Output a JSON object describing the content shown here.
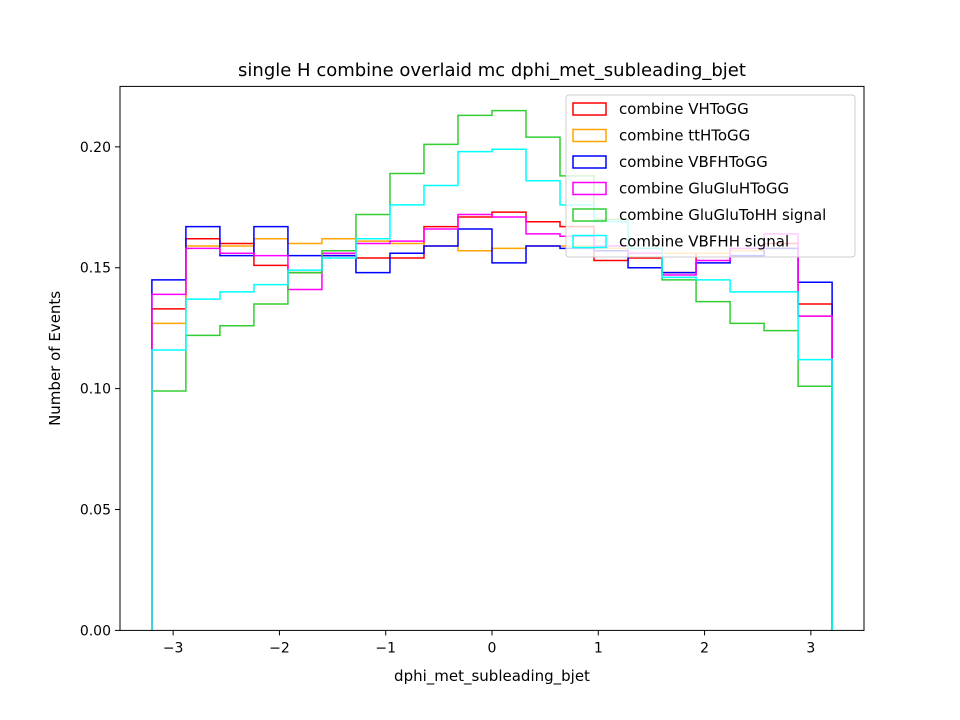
{
  "chart_data": {
    "type": "histogram-step",
    "title": "single H combine overlaid mc dphi_met_subleading_bjet",
    "xlabel": "dphi_met_subleading_bjet",
    "ylabel": "Number of Events",
    "xlim": [
      -3.5,
      3.5
    ],
    "ylim": [
      0,
      0.225
    ],
    "x_ticks": [
      -3,
      -2,
      -1,
      0,
      1,
      2,
      3
    ],
    "x_tick_labels": [
      "−3",
      "−2",
      "−1",
      "0",
      "1",
      "2",
      "3"
    ],
    "y_ticks": [
      0.0,
      0.05,
      0.1,
      0.15,
      0.2
    ],
    "y_tick_labels": [
      "0.00",
      "0.05",
      "0.10",
      "0.15",
      "0.20"
    ],
    "grid": false,
    "legend_position": "top-right",
    "bin_edges": [
      -3.2,
      -2.88,
      -2.56,
      -2.24,
      -1.92,
      -1.6,
      -1.28,
      -0.96,
      -0.64,
      -0.32,
      0.0,
      0.32,
      0.64,
      0.96,
      1.28,
      1.6,
      1.92,
      2.24,
      2.56,
      2.88,
      3.2
    ],
    "series": [
      {
        "name": "combine VHToGG",
        "color": "#ff0000",
        "values": [
          0.133,
          0.162,
          0.16,
          0.151,
          0.148,
          0.155,
          0.154,
          0.154,
          0.167,
          0.171,
          0.173,
          0.169,
          0.167,
          0.153,
          0.154,
          0.148,
          0.156,
          0.157,
          0.16,
          0.135
        ]
      },
      {
        "name": "combine ttHToGG",
        "color": "#ffa500",
        "values": [
          0.127,
          0.159,
          0.159,
          0.162,
          0.16,
          0.162,
          0.161,
          0.16,
          0.159,
          0.157,
          0.158,
          0.159,
          0.159,
          0.158,
          0.158,
          0.156,
          0.156,
          0.157,
          0.158,
          0.13
        ]
      },
      {
        "name": "combine VBFHToGG",
        "color": "#0000ff",
        "values": [
          0.145,
          0.167,
          0.155,
          0.167,
          0.155,
          0.155,
          0.148,
          0.156,
          0.159,
          0.166,
          0.152,
          0.159,
          0.158,
          0.157,
          0.15,
          0.148,
          0.152,
          0.155,
          0.158,
          0.144
        ]
      },
      {
        "name": "combine GluGluHToGG",
        "color": "#ff00ff",
        "values": [
          0.139,
          0.158,
          0.156,
          0.155,
          0.141,
          0.156,
          0.16,
          0.161,
          0.166,
          0.172,
          0.171,
          0.164,
          0.163,
          0.159,
          0.156,
          0.147,
          0.153,
          0.158,
          0.164,
          0.13
        ]
      },
      {
        "name": "combine GluGluToHH signal",
        "color": "#32cd32",
        "values": [
          0.099,
          0.122,
          0.126,
          0.135,
          0.148,
          0.157,
          0.172,
          0.189,
          0.201,
          0.213,
          0.215,
          0.204,
          0.188,
          0.17,
          0.158,
          0.145,
          0.136,
          0.127,
          0.124,
          0.101
        ]
      },
      {
        "name": "combine VBFHH signal",
        "color": "#00ffff",
        "values": [
          0.116,
          0.137,
          0.14,
          0.143,
          0.149,
          0.154,
          0.162,
          0.176,
          0.184,
          0.198,
          0.199,
          0.186,
          0.176,
          0.169,
          0.158,
          0.146,
          0.145,
          0.14,
          0.14,
          0.112
        ]
      }
    ]
  }
}
